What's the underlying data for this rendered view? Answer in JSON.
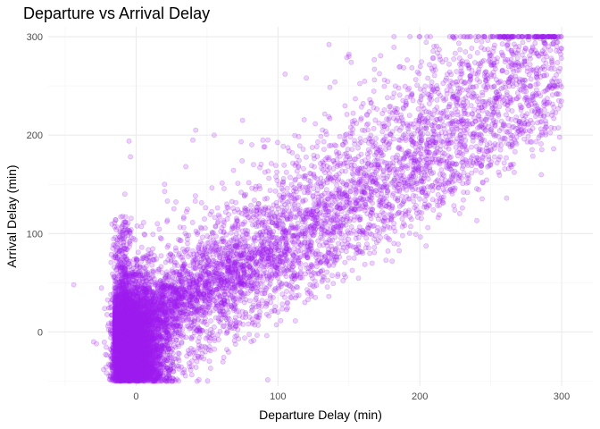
{
  "chart_data": {
    "type": "scatter",
    "title": "Departure vs Arrival Delay",
    "xlabel": "Departure Delay (min)",
    "ylabel": "Arrival Delay (min)",
    "xlim": [
      -50,
      300
    ],
    "ylim": [
      -50,
      300
    ],
    "x_ticks": [
      0,
      100,
      200,
      300
    ],
    "y_ticks": [
      0,
      100,
      200,
      300
    ],
    "grid": true,
    "point_color": "#A020F0",
    "point_alpha": 0.2,
    "series": [
      {
        "name": "",
        "points": [
          [
            -44,
            48
          ],
          [
            -30,
            -10
          ],
          [
            -28,
            -12
          ],
          [
            -18,
            2
          ],
          [
            -14,
            38
          ],
          [
            -12,
            82
          ],
          [
            -8,
            140
          ],
          [
            -5,
            194
          ],
          [
            -4,
            178
          ],
          [
            -2,
            95
          ],
          [
            -6,
            60
          ],
          [
            -10,
            -48
          ],
          [
            -3,
            -45
          ],
          [
            0,
            -50
          ],
          [
            5,
            -49
          ],
          [
            10,
            -48
          ],
          [
            8,
            40
          ],
          [
            15,
            110
          ],
          [
            20,
            150
          ],
          [
            28,
            132
          ],
          [
            35,
            168
          ],
          [
            40,
            195
          ],
          [
            42,
            205
          ],
          [
            55,
            200
          ],
          [
            75,
            215
          ],
          [
            90,
            188
          ],
          [
            105,
            262
          ],
          [
            120,
            258
          ],
          [
            136,
            292
          ],
          [
            150,
            280
          ],
          [
            160,
            232
          ],
          [
            175,
            256
          ],
          [
            200,
            300
          ],
          [
            210,
            290
          ],
          [
            225,
            283
          ],
          [
            240,
            296
          ],
          [
            255,
            301
          ],
          [
            270,
            290
          ],
          [
            285,
            298
          ],
          [
            295,
            300
          ],
          [
            20,
            -28
          ],
          [
            40,
            -5
          ],
          [
            55,
            5
          ],
          [
            65,
            20
          ],
          [
            80,
            15
          ],
          [
            95,
            30
          ],
          [
            110,
            45
          ],
          [
            125,
            60
          ],
          [
            140,
            80
          ],
          [
            155,
            95
          ],
          [
            165,
            100
          ],
          [
            180,
            115
          ],
          [
            200,
            135
          ],
          [
            205,
            126
          ],
          [
            215,
            150
          ],
          [
            230,
            126
          ],
          [
            240,
            172
          ],
          [
            255,
            190
          ],
          [
            270,
            212
          ],
          [
            285,
            240
          ],
          [
            295,
            250
          ],
          [
            298,
            235
          ]
        ]
      }
    ]
  }
}
